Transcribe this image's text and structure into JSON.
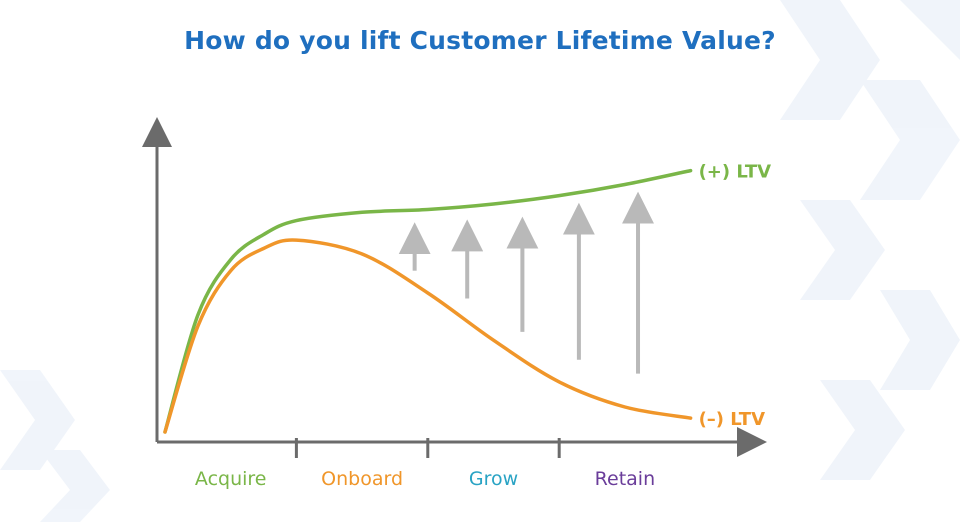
{
  "title": "How do you lift Customer Lifetime Value?",
  "colors": {
    "title": "#1f6fbf",
    "positive": "#7ab648",
    "negative": "#f0962a",
    "arrow": "#b9b9b9",
    "axis": "#6b6b6b",
    "acquire": "#7ab648",
    "onboard": "#f0962a",
    "grow": "#29a3c4",
    "retain": "#6a3d9a"
  },
  "chart_data": {
    "type": "line",
    "title": "How do you lift Customer Lifetime Value?",
    "xlabel": "",
    "ylabel": "",
    "stages": [
      {
        "label": "Acquire",
        "color": "#7ab648"
      },
      {
        "label": "Onboard",
        "color": "#f0962a"
      },
      {
        "label": "Grow",
        "color": "#29a3c4"
      },
      {
        "label": "Retain",
        "color": "#6a3d9a"
      }
    ],
    "series": [
      {
        "name": "(+) LTV",
        "color": "#7ab648",
        "x": [
          0,
          0.25,
          0.5,
          0.75,
          1.0,
          1.5,
          2.0,
          2.5,
          3.0,
          3.5,
          4.0
        ],
        "y": [
          0,
          0.42,
          0.62,
          0.71,
          0.76,
          0.79,
          0.8,
          0.82,
          0.85,
          0.89,
          0.94
        ]
      },
      {
        "name": "(–) LTV",
        "color": "#f0962a",
        "x": [
          0,
          0.25,
          0.5,
          0.75,
          1.0,
          1.5,
          2.0,
          2.5,
          3.0,
          3.5,
          4.0
        ],
        "y": [
          0,
          0.38,
          0.58,
          0.66,
          0.69,
          0.64,
          0.5,
          0.33,
          0.18,
          0.09,
          0.05
        ]
      }
    ],
    "lift_arrows": [
      {
        "x": 1.9,
        "from": 0.58,
        "to": 0.74
      },
      {
        "x": 2.3,
        "from": 0.48,
        "to": 0.75
      },
      {
        "x": 2.72,
        "from": 0.36,
        "to": 0.76
      },
      {
        "x": 3.15,
        "from": 0.26,
        "to": 0.81
      },
      {
        "x": 3.6,
        "from": 0.21,
        "to": 0.85
      }
    ],
    "xlim": [
      0,
      4.3
    ],
    "ylim": [
      0,
      1.05
    ],
    "grid": false
  }
}
